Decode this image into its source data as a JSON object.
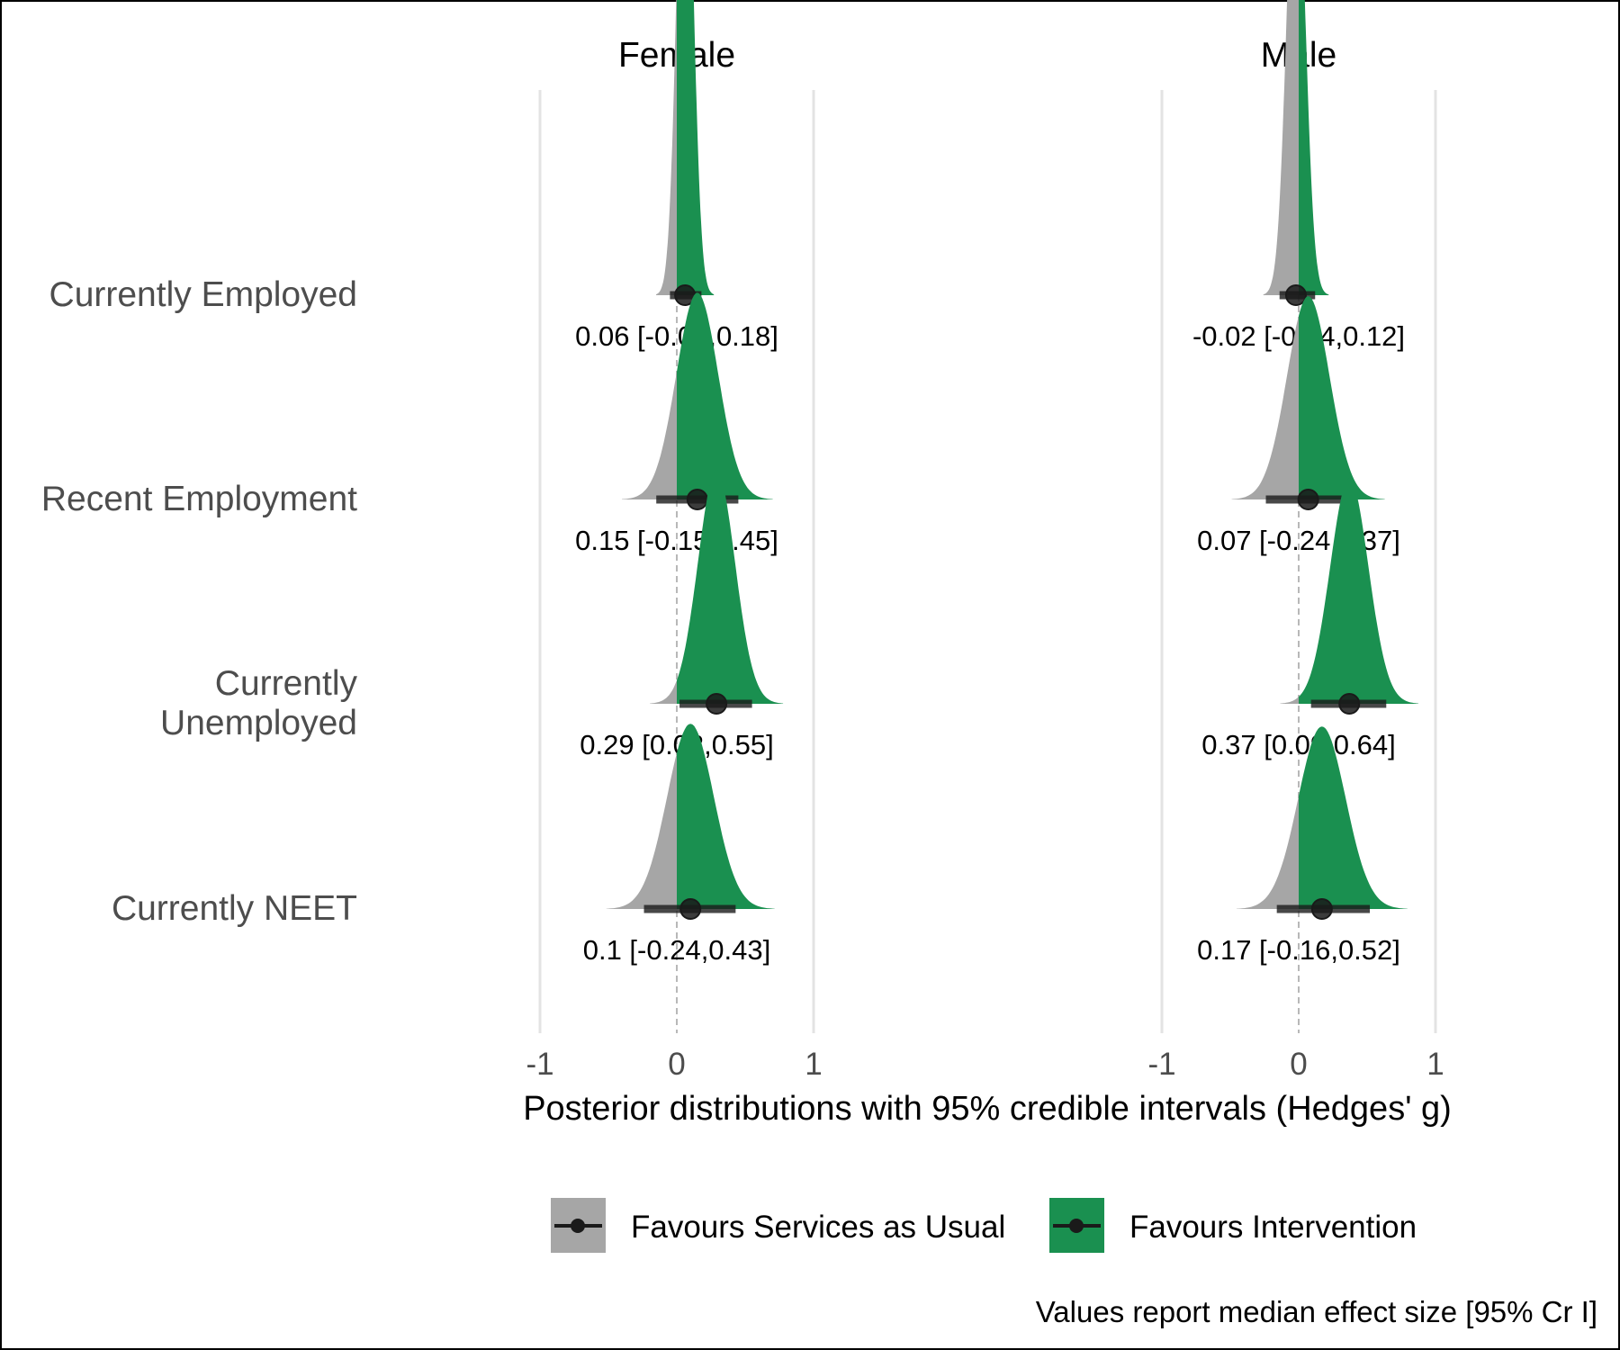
{
  "chart_data": {
    "type": "density-interval",
    "panels": [
      "Female",
      "Male"
    ],
    "categories": [
      "Currently Employed",
      "Recent Employment",
      "Currently Unemployed",
      "Currently NEET"
    ],
    "x_ticks": [
      "-1",
      "0",
      "1"
    ],
    "xlim": [
      -1,
      1
    ],
    "xlabel": "Posterior distributions with 95% credible intervals (Hedges' g)",
    "caption": "Values report median effect size [95% Cr I]",
    "legend": {
      "position": "bottom",
      "items": [
        {
          "label": "Favours Services as Usual",
          "color": "#a6a6a6"
        },
        {
          "label": "Favours Intervention",
          "color": "#1a9050"
        }
      ]
    },
    "reference_line": 0,
    "series": [
      {
        "panel": "Female",
        "category": "Currently Employed",
        "median": 0.06,
        "lower": -0.05,
        "upper": 0.18,
        "label": "0.06 [-0.05,0.18]"
      },
      {
        "panel": "Female",
        "category": "Recent Employment",
        "median": 0.15,
        "lower": -0.15,
        "upper": 0.45,
        "label": "0.15 [-0.15,0.45]"
      },
      {
        "panel": "Female",
        "category": "Currently Unemployed",
        "median": 0.29,
        "lower": 0.02,
        "upper": 0.55,
        "label": "0.29 [0.02,0.55]"
      },
      {
        "panel": "Female",
        "category": "Currently NEET",
        "median": 0.1,
        "lower": -0.24,
        "upper": 0.43,
        "label": "0.1 [-0.24,0.43]"
      },
      {
        "panel": "Male",
        "category": "Currently Employed",
        "median": -0.02,
        "lower": -0.14,
        "upper": 0.12,
        "label": "-0.02 [-0.14,0.12]"
      },
      {
        "panel": "Male",
        "category": "Recent Employment",
        "median": 0.07,
        "lower": -0.24,
        "upper": 0.37,
        "label": "0.07 [-0.24,0.37]"
      },
      {
        "panel": "Male",
        "category": "Currently Unemployed",
        "median": 0.37,
        "lower": 0.09,
        "upper": 0.64,
        "label": "0.37 [0.09,0.64]"
      },
      {
        "panel": "Male",
        "category": "Currently NEET",
        "median": 0.17,
        "lower": -0.16,
        "upper": 0.52,
        "label": "0.17 [-0.16,0.52]"
      }
    ]
  }
}
